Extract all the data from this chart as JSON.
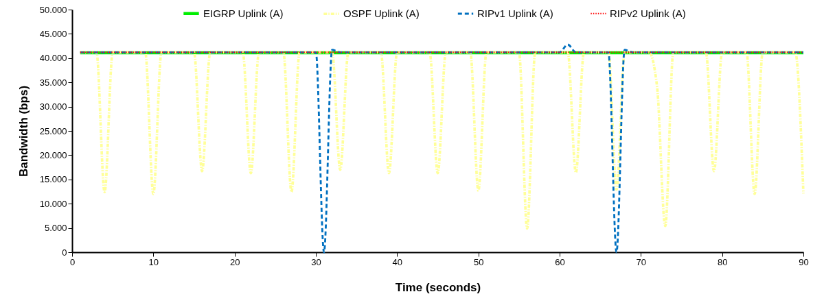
{
  "chart_data": {
    "type": "line",
    "xlabel": "Time (seconds)",
    "ylabel": "Bandwidth (bps)",
    "xlim": [
      0,
      90
    ],
    "xticks": [
      0,
      10,
      20,
      30,
      40,
      50,
      60,
      70,
      80,
      90
    ],
    "ylim": [
      0,
      50000
    ],
    "yticks": [
      {
        "value": 0,
        "label": "0"
      },
      {
        "value": 5000,
        "label": "5.000"
      },
      {
        "value": 10000,
        "label": "10.000"
      },
      {
        "value": 15000,
        "label": "15.000"
      },
      {
        "value": 20000,
        "label": "20.000"
      },
      {
        "value": 25000,
        "label": "25.000"
      },
      {
        "value": 30000,
        "label": "30.000"
      },
      {
        "value": 35000,
        "label": "35.000"
      },
      {
        "value": 40000,
        "label": "40.000"
      },
      {
        "value": 45000,
        "label": "45.000"
      },
      {
        "value": 50000,
        "label": "50.000"
      }
    ],
    "grid": false,
    "legend": "top",
    "marker": "none",
    "x": [
      1,
      2,
      3,
      4,
      5,
      6,
      7,
      8,
      9,
      10,
      11,
      12,
      13,
      14,
      15,
      16,
      17,
      18,
      19,
      20,
      21,
      22,
      23,
      24,
      25,
      26,
      27,
      28,
      29,
      30,
      31,
      32,
      33,
      34,
      35,
      36,
      37,
      38,
      39,
      40,
      41,
      42,
      43,
      44,
      45,
      46,
      47,
      48,
      49,
      50,
      51,
      52,
      53,
      54,
      55,
      56,
      57,
      58,
      59,
      60,
      61,
      62,
      63,
      64,
      65,
      66,
      67,
      68,
      69,
      70,
      71,
      72,
      73,
      74,
      75,
      76,
      77,
      78,
      79,
      80,
      81,
      82,
      83,
      84,
      85,
      86,
      87,
      88,
      89,
      90
    ],
    "series": [
      {
        "name": "EIGRP Uplink (A)",
        "color": "#00ee00",
        "line_style": "solid",
        "values": [
          41100,
          41100,
          41100,
          41100,
          41100,
          41100,
          41100,
          41100,
          41100,
          41100,
          41100,
          41100,
          41100,
          41100,
          41100,
          41100,
          41100,
          41100,
          41100,
          41100,
          41100,
          41100,
          41100,
          41100,
          41100,
          41100,
          41100,
          41100,
          41100,
          41100,
          41100,
          41100,
          41100,
          41100,
          41100,
          41100,
          41100,
          41100,
          41100,
          41100,
          41100,
          41100,
          41100,
          41100,
          41100,
          41100,
          41100,
          41100,
          41100,
          41100,
          41100,
          41100,
          41100,
          41100,
          41100,
          41100,
          41100,
          41100,
          41100,
          41100,
          41100,
          41100,
          41100,
          41100,
          41100,
          41100,
          41100,
          41100,
          41100,
          41100,
          41100,
          41100,
          41100,
          41100,
          41100,
          41100,
          41100,
          41100,
          41100,
          41100,
          41100,
          41100,
          41100,
          41100,
          41100,
          41100,
          41100,
          41100,
          41100,
          41100
        ]
      },
      {
        "name": "OSPF Uplink (A)",
        "color": "#ffff99",
        "line_style": "dashdot",
        "values": [
          41200,
          41200,
          41200,
          12400,
          41200,
          41200,
          41200,
          41200,
          41200,
          12000,
          41200,
          41200,
          41200,
          41200,
          41200,
          16700,
          41200,
          41200,
          41200,
          41200,
          41200,
          16300,
          41200,
          41200,
          41200,
          41200,
          12400,
          41200,
          41200,
          41200,
          41200,
          41200,
          17000,
          41200,
          41200,
          41200,
          41200,
          41200,
          16300,
          41200,
          41200,
          41200,
          41200,
          41200,
          16300,
          41200,
          41200,
          41200,
          41200,
          12700,
          41200,
          41200,
          41200,
          41200,
          41200,
          4900,
          41200,
          41200,
          41200,
          41200,
          41200,
          16400,
          41200,
          41200,
          41200,
          41200,
          12900,
          41200,
          41200,
          41200,
          41200,
          34000,
          5400,
          41200,
          41200,
          41200,
          41200,
          41200,
          16700,
          41200,
          41200,
          41200,
          41200,
          12000,
          41200,
          41200,
          41200,
          41200,
          41200,
          12100
        ]
      },
      {
        "name": "RIPv1 Uplink (A)",
        "color": "#0070c0",
        "line_style": "dashed",
        "values": [
          41200,
          41200,
          41200,
          41200,
          41200,
          41200,
          41200,
          41200,
          41200,
          41200,
          41200,
          41200,
          41200,
          41200,
          41200,
          41200,
          41200,
          41200,
          41200,
          41200,
          41200,
          41200,
          41200,
          41200,
          41200,
          41200,
          41200,
          41200,
          41200,
          41200,
          0,
          41700,
          41200,
          41200,
          41200,
          41200,
          41200,
          41200,
          41200,
          41200,
          41200,
          41200,
          41200,
          41200,
          41200,
          41200,
          41200,
          41200,
          41200,
          41200,
          41200,
          41200,
          41200,
          41200,
          41200,
          41200,
          41200,
          41200,
          41200,
          41200,
          42800,
          41200,
          41200,
          41200,
          41200,
          41200,
          0,
          41700,
          41200,
          41200,
          41200,
          41200,
          41200,
          41200,
          41200,
          41200,
          41200,
          41200,
          41200,
          41200,
          41200,
          41200,
          41200,
          41200,
          41200,
          41200,
          41200,
          41200,
          41200,
          41200
        ]
      },
      {
        "name": "RIPv2 Uplink (A)",
        "color": "#ff0000",
        "line_style": "dotted",
        "values": [
          41200,
          41200,
          41200,
          41200,
          41200,
          41200,
          41200,
          41200,
          41200,
          41200,
          41200,
          41200,
          41200,
          41200,
          41200,
          41200,
          41200,
          41200,
          41200,
          41200,
          41200,
          41200,
          41200,
          41200,
          41200,
          41200,
          41200,
          41200,
          41200,
          41200,
          41200,
          41200,
          41200,
          41200,
          41200,
          41200,
          41200,
          41200,
          41200,
          41200,
          41200,
          41200,
          41200,
          41200,
          41200,
          41200,
          41200,
          41200,
          41200,
          41200,
          41200,
          41200,
          41200,
          41200,
          41200,
          41200,
          41200,
          41200,
          41200,
          41200,
          41200,
          41200,
          41200,
          41200,
          41200,
          41200,
          41200,
          41200,
          41200,
          41200,
          41200,
          41200,
          41200,
          41200,
          41200,
          41200,
          41200,
          41200,
          41200,
          41200,
          41200,
          41200,
          41200,
          41200,
          41200,
          41200,
          41200,
          41200,
          41200,
          41200
        ]
      }
    ]
  }
}
